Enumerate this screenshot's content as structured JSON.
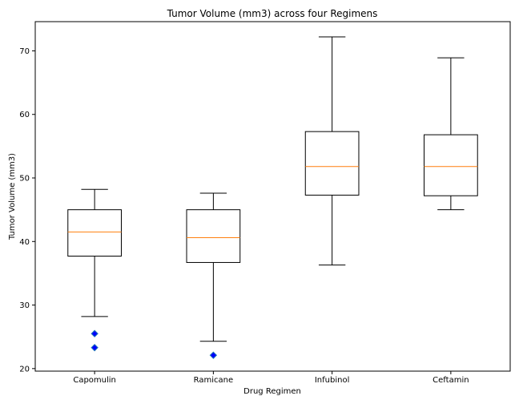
{
  "chart_data": {
    "type": "box",
    "title": "Tumor Volume (mm3) across four Regimens",
    "xlabel": "Drug Regimen",
    "ylabel": "Tumor Volume (mm3)",
    "ylim": [
      19.6,
      74.6
    ],
    "yticks": [
      20,
      30,
      40,
      50,
      60,
      70
    ],
    "ytick_labels": [
      "20",
      "30",
      "40",
      "50",
      "60",
      "70"
    ],
    "grid": false,
    "categories": [
      "Capomulin",
      "Ramicane",
      "Infubinol",
      "Ceftamin"
    ],
    "boxes": [
      {
        "whisker_low": 28.2,
        "q1": 37.7,
        "median": 41.5,
        "q3": 45.0,
        "whisker_high": 48.2,
        "outliers": [
          25.5,
          23.3
        ]
      },
      {
        "whisker_low": 24.3,
        "q1": 36.7,
        "median": 40.6,
        "q3": 45.0,
        "whisker_high": 47.6,
        "outliers": [
          22.1
        ]
      },
      {
        "whisker_low": 36.3,
        "q1": 47.3,
        "median": 51.8,
        "q3": 57.3,
        "whisker_high": 72.2,
        "outliers": []
      },
      {
        "whisker_low": 45.0,
        "q1": 47.2,
        "median": 51.8,
        "q3": 56.8,
        "whisker_high": 68.9,
        "outliers": []
      }
    ],
    "colors": {
      "box": "#000000",
      "median": "#ff7f0e",
      "outlier_fill": "#0000ff",
      "outlier_edge": "#1f77b4"
    },
    "outlier_marker": "diamond"
  }
}
